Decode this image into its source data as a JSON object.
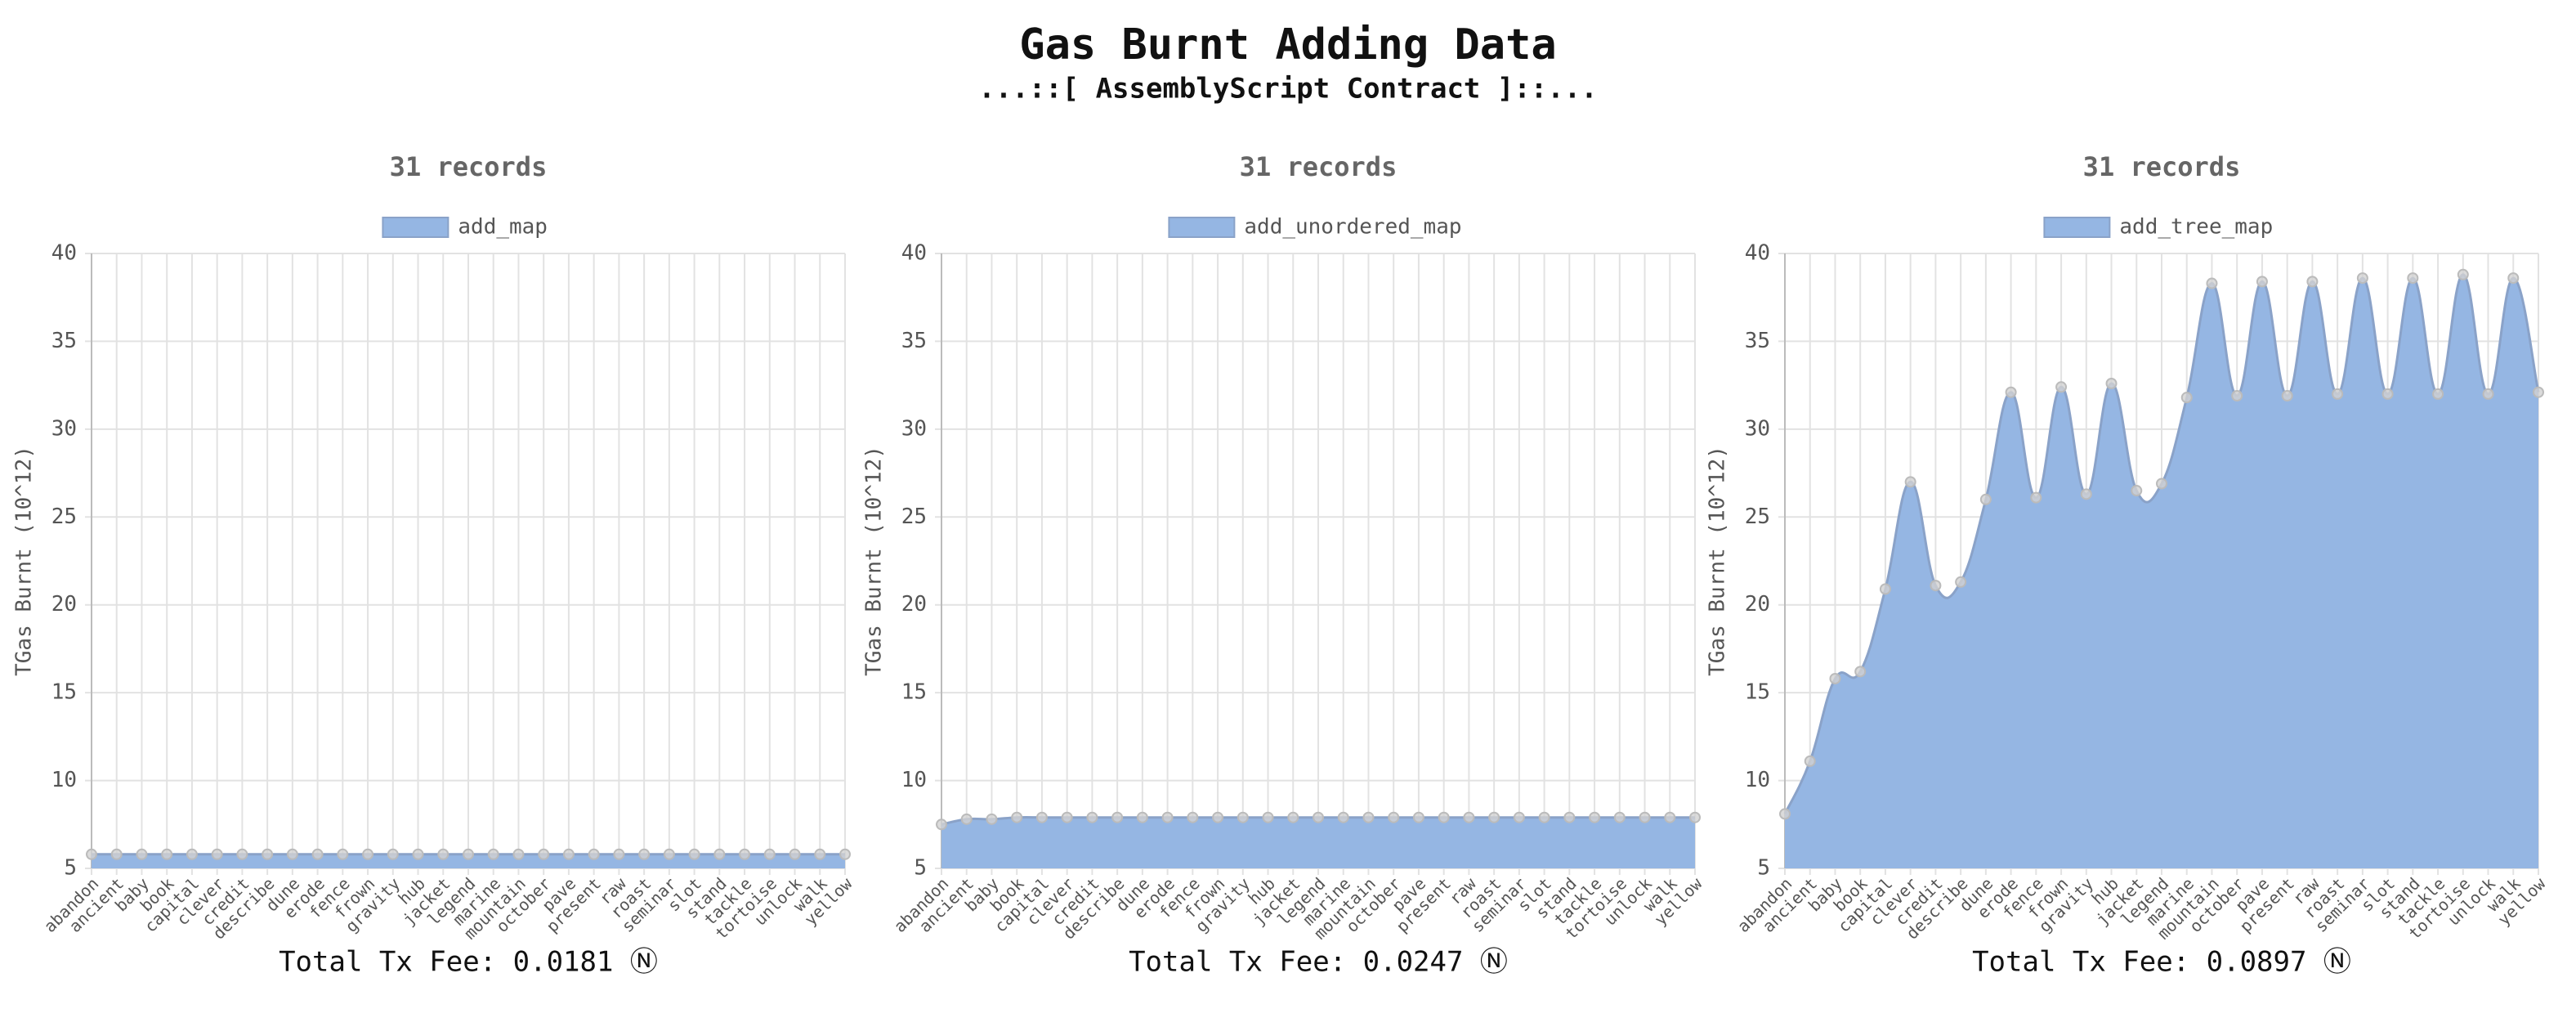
{
  "title": "Gas Burnt Adding Data",
  "subtitle": "...::[ AssemblyScript Contract ]::...",
  "chart_data": [
    {
      "type": "line",
      "title": "31 records",
      "y_label": "TGas Burnt (10^12)",
      "categories": [
        "abandon",
        "ancient",
        "baby",
        "book",
        "capital",
        "clever",
        "credit",
        "describe",
        "dune",
        "erode",
        "fence",
        "frown",
        "gravity",
        "hub",
        "jacket",
        "legend",
        "marine",
        "mountain",
        "october",
        "pave",
        "present",
        "raw",
        "roast",
        "seminar",
        "slot",
        "stand",
        "tackle",
        "tortoise",
        "unlock",
        "walk",
        "yellow"
      ],
      "series": [
        {
          "name": "add_map",
          "color": "#95b6e3",
          "values": [
            5.8,
            5.8,
            5.8,
            5.8,
            5.8,
            5.8,
            5.8,
            5.8,
            5.8,
            5.8,
            5.8,
            5.8,
            5.8,
            5.8,
            5.8,
            5.8,
            5.8,
            5.8,
            5.8,
            5.8,
            5.8,
            5.8,
            5.8,
            5.8,
            5.8,
            5.8,
            5.8,
            5.8,
            5.8,
            5.8,
            5.8
          ]
        }
      ],
      "line_color": "#8aa2c8",
      "fill": true,
      "ylim": [
        5,
        40
      ],
      "yticks": [
        5,
        10,
        15,
        20,
        25,
        30,
        35,
        40
      ],
      "grid": true,
      "footer": "Total Tx Fee: 0.0181 Ⓝ"
    },
    {
      "type": "line",
      "title": "31 records",
      "y_label": "TGas Burnt (10^12)",
      "categories": [
        "abandon",
        "ancient",
        "baby",
        "book",
        "capital",
        "clever",
        "credit",
        "describe",
        "dune",
        "erode",
        "fence",
        "frown",
        "gravity",
        "hub",
        "jacket",
        "legend",
        "marine",
        "mountain",
        "october",
        "pave",
        "present",
        "raw",
        "roast",
        "seminar",
        "slot",
        "stand",
        "tackle",
        "tortoise",
        "unlock",
        "walk",
        "yellow"
      ],
      "series": [
        {
          "name": "add_unordered_map",
          "color": "#95b6e3",
          "values": [
            7.5,
            7.8,
            7.8,
            7.9,
            7.9,
            7.9,
            7.9,
            7.9,
            7.9,
            7.9,
            7.9,
            7.9,
            7.9,
            7.9,
            7.9,
            7.9,
            7.9,
            7.9,
            7.9,
            7.9,
            7.9,
            7.9,
            7.9,
            7.9,
            7.9,
            7.9,
            7.9,
            7.9,
            7.9,
            7.9,
            7.9
          ]
        }
      ],
      "line_color": "#8aa2c8",
      "fill": true,
      "ylim": [
        5,
        40
      ],
      "yticks": [
        5,
        10,
        15,
        20,
        25,
        30,
        35,
        40
      ],
      "grid": true,
      "footer": "Total Tx Fee: 0.0247 Ⓝ"
    },
    {
      "type": "line",
      "title": "31 records",
      "y_label": "TGas Burnt (10^12)",
      "categories": [
        "abandon",
        "ancient",
        "baby",
        "book",
        "capital",
        "clever",
        "credit",
        "describe",
        "dune",
        "erode",
        "fence",
        "frown",
        "gravity",
        "hub",
        "jacket",
        "legend",
        "marine",
        "mountain",
        "october",
        "pave",
        "present",
        "raw",
        "roast",
        "seminar",
        "slot",
        "stand",
        "tackle",
        "tortoise",
        "unlock",
        "walk",
        "yellow"
      ],
      "series": [
        {
          "name": "add_tree_map",
          "color": "#95b6e3",
          "values": [
            8.1,
            11.1,
            15.8,
            16.2,
            20.9,
            27.0,
            21.1,
            21.3,
            26.0,
            32.1,
            26.1,
            32.4,
            26.3,
            32.6,
            26.5,
            26.9,
            31.8,
            38.3,
            31.9,
            38.4,
            31.9,
            38.4,
            32.0,
            38.6,
            32.0,
            38.6,
            32.0,
            38.8,
            32.0,
            38.6,
            32.1
          ]
        }
      ],
      "line_color": "#8aa2c8",
      "fill": true,
      "ylim": [
        5,
        40
      ],
      "yticks": [
        5,
        10,
        15,
        20,
        25,
        30,
        35,
        40
      ],
      "grid": true,
      "footer": "Total Tx Fee: 0.0897 Ⓝ"
    }
  ]
}
